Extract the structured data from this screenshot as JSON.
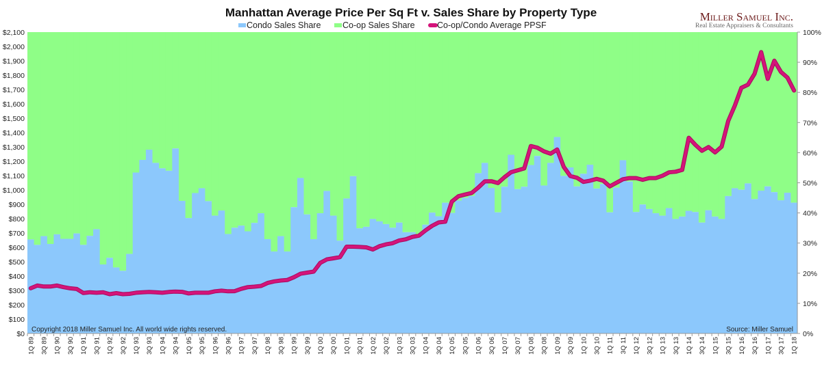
{
  "chart_data": {
    "type": "bar",
    "title": "Manhattan Average Price Per Sq Ft v. Sales Share by Property Type",
    "legend": [
      "Condo Sales Share",
      "Co-op Sales Share",
      "Co-op/Condo Average PPSF"
    ],
    "legend_placement": "top",
    "stacked": true,
    "left_axis": {
      "range": [
        0,
        2100
      ],
      "ticks": [
        "$0",
        "$100",
        "$200",
        "$300",
        "$400",
        "$500",
        "$600",
        "$700",
        "$800",
        "$900",
        "$1,000",
        "$1,100",
        "$1,200",
        "$1,300",
        "$1,400",
        "$1,500",
        "$1,600",
        "$1,700",
        "$1,800",
        "$1,900",
        "$2,000",
        "$2,100"
      ]
    },
    "right_axis": {
      "range": [
        0,
        100
      ],
      "ticks": [
        "0%",
        "10%",
        "20%",
        "30%",
        "40%",
        "50%",
        "60%",
        "70%",
        "80%",
        "90%",
        "100%"
      ]
    },
    "grid": false,
    "categories": [
      "1Q 89",
      "2Q 89",
      "3Q 89",
      "4Q 89",
      "1Q 90",
      "2Q 90",
      "3Q 90",
      "4Q 90",
      "1Q 91",
      "2Q 91",
      "3Q 91",
      "4Q 91",
      "1Q 92",
      "2Q 92",
      "3Q 92",
      "4Q 92",
      "1Q 93",
      "2Q 93",
      "3Q 93",
      "4Q 93",
      "1Q 94",
      "2Q 94",
      "3Q 94",
      "4Q 94",
      "1Q 95",
      "2Q 95",
      "3Q 95",
      "4Q 95",
      "1Q 96",
      "2Q 96",
      "3Q 96",
      "4Q 96",
      "1Q 97",
      "2Q 97",
      "3Q 97",
      "4Q 97",
      "1Q 98",
      "2Q 98",
      "3Q 98",
      "4Q 98",
      "1Q 99",
      "2Q 99",
      "3Q 99",
      "4Q 99",
      "1Q 00",
      "2Q 00",
      "3Q 00",
      "4Q 00",
      "1Q 01",
      "2Q 01",
      "3Q 01",
      "4Q 01",
      "1Q 02",
      "2Q 02",
      "3Q 02",
      "4Q 02",
      "1Q 03",
      "2Q 03",
      "3Q 03",
      "4Q 03",
      "1Q 04",
      "2Q 04",
      "3Q 04",
      "4Q 04",
      "1Q 05",
      "2Q 05",
      "3Q 05",
      "4Q 05",
      "1Q 06",
      "2Q 06",
      "3Q 06",
      "4Q 06",
      "1Q 07",
      "2Q 07",
      "3Q 07",
      "4Q 07",
      "1Q 08",
      "2Q 08",
      "3Q 08",
      "4Q 08",
      "1Q 09",
      "2Q 09",
      "3Q 09",
      "4Q 09",
      "1Q 10",
      "2Q 10",
      "3Q 10",
      "4Q 10",
      "1Q 11",
      "2Q 11",
      "3Q 11",
      "4Q 11",
      "1Q 12",
      "2Q 12",
      "3Q 12",
      "4Q 12",
      "1Q 13",
      "2Q 13",
      "3Q 13",
      "4Q 13",
      "1Q 14",
      "2Q 14",
      "3Q 14",
      "4Q 14",
      "1Q 15",
      "2Q 15",
      "3Q 15",
      "4Q 15",
      "1Q 16",
      "2Q 16",
      "3Q 16",
      "4Q 16",
      "1Q 17",
      "2Q 17",
      "3Q 17",
      "4Q 17",
      "1Q 18"
    ],
    "series": [
      {
        "name": "Condo Sales Share",
        "axis": "right",
        "unit": "%",
        "color": "#8CC8FC",
        "values": [
          31.2,
          29.4,
          32.3,
          29.7,
          32.9,
          31.4,
          31.4,
          33.2,
          29.4,
          32.4,
          34.6,
          22.9,
          25.1,
          21.9,
          20.8,
          26.4,
          53.4,
          57.6,
          61.0,
          56.6,
          54.8,
          54.0,
          61.4,
          44.0,
          38.3,
          46.6,
          48.2,
          43.9,
          39.1,
          40.8,
          33.0,
          35.1,
          35.8,
          33.9,
          36.7,
          39.9,
          31.3,
          27.2,
          32.3,
          27.2,
          41.9,
          51.6,
          39.5,
          31.3,
          39.9,
          47.3,
          39.1,
          30.8,
          44.8,
          52.2,
          34.9,
          35.4,
          38.0,
          37.2,
          36.3,
          35.1,
          36.8,
          33.6,
          33.6,
          32.7,
          36.1,
          40.1,
          38.9,
          43.4,
          40.0,
          44.1,
          45.0,
          45.6,
          53.2,
          56.6,
          48.3,
          40.2,
          48.7,
          59.3,
          47.9,
          48.7,
          55.9,
          58.9,
          49.1,
          56.6,
          65.2,
          52.3,
          55.1,
          48.8,
          53.0,
          56.0,
          48.1,
          49.6,
          40.2,
          48.4,
          57.5,
          50.4,
          40.3,
          42.8,
          41.3,
          39.9,
          39.1,
          41.6,
          38.0,
          38.8,
          40.7,
          40.3,
          36.8,
          40.9,
          38.8,
          38.0,
          45.6,
          48.2,
          47.7,
          49.8,
          44.6,
          47.4,
          48.8,
          46.9,
          44.2,
          46.7,
          43.4
        ]
      },
      {
        "name": "Co-op Sales Share",
        "axis": "right",
        "unit": "%",
        "color": "#8FFE87",
        "values": "remainder to 100%"
      },
      {
        "name": "Co-op/Condo Average PPSF",
        "axis": "left",
        "unit": "$",
        "type": "line",
        "color": "#D4147A",
        "values": [
          315,
          334,
          327,
          327,
          334,
          323,
          315,
          310,
          282,
          287,
          284,
          287,
          274,
          281,
          274,
          276,
          284,
          287,
          289,
          287,
          284,
          289,
          292,
          290,
          279,
          284,
          284,
          284,
          294,
          298,
          294,
          295,
          311,
          323,
          326,
          331,
          352,
          363,
          369,
          373,
          392,
          416,
          424,
          431,
          492,
          516,
          524,
          532,
          605,
          605,
          603,
          600,
          585,
          608,
          621,
          629,
          648,
          656,
          673,
          682,
          718,
          750,
          774,
          779,
          919,
          956,
          968,
          979,
          1016,
          1060,
          1061,
          1048,
          1089,
          1124,
          1137,
          1150,
          1306,
          1295,
          1269,
          1253,
          1282,
          1161,
          1097,
          1085,
          1056,
          1065,
          1077,
          1065,
          1025,
          1050,
          1075,
          1083,
          1083,
          1071,
          1083,
          1083,
          1099,
          1123,
          1127,
          1140,
          1364,
          1315,
          1273,
          1299,
          1262,
          1302,
          1481,
          1587,
          1712,
          1734,
          1810,
          1961,
          1774,
          1901,
          1823,
          1783,
          1693
        ]
      }
    ],
    "annotations": {
      "copyright": "Copyright 2018 Miller Samuel Inc.  All world wide rights reserved.",
      "source": "Source: Miller Samuel"
    }
  },
  "logo": {
    "name": "Miller Samuel Inc.",
    "tagline": "Real Estate Appraisers & Consultants"
  }
}
